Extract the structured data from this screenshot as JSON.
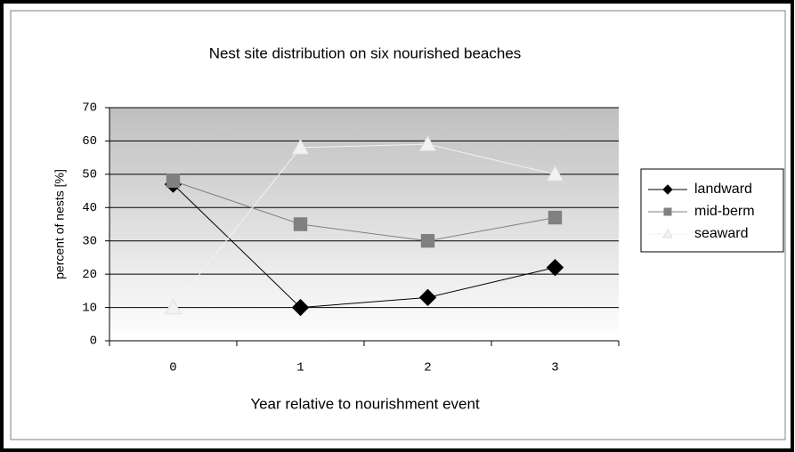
{
  "chart_data": {
    "type": "line",
    "title": "Nest site distribution on six nourished beaches",
    "x_label": "Year relative to nourishment event",
    "y_label": "percent of nests [%]",
    "categories": [
      "0",
      "1",
      "2",
      "3"
    ],
    "series": [
      {
        "name": "landward",
        "color": "#000000",
        "marker": "diamond",
        "values": [
          47,
          10,
          13,
          22
        ]
      },
      {
        "name": "mid-berm",
        "color": "#808080",
        "marker": "square",
        "values": [
          48,
          35,
          30,
          37
        ]
      },
      {
        "name": "seaward",
        "color": "#f2f2f2",
        "marker": "triangle",
        "values": [
          10,
          58,
          59,
          50
        ]
      }
    ],
    "ylim": [
      0,
      70
    ],
    "yticks": [
      0,
      10,
      20,
      30,
      40,
      50,
      60,
      70
    ],
    "grid": true,
    "legend": "right"
  }
}
